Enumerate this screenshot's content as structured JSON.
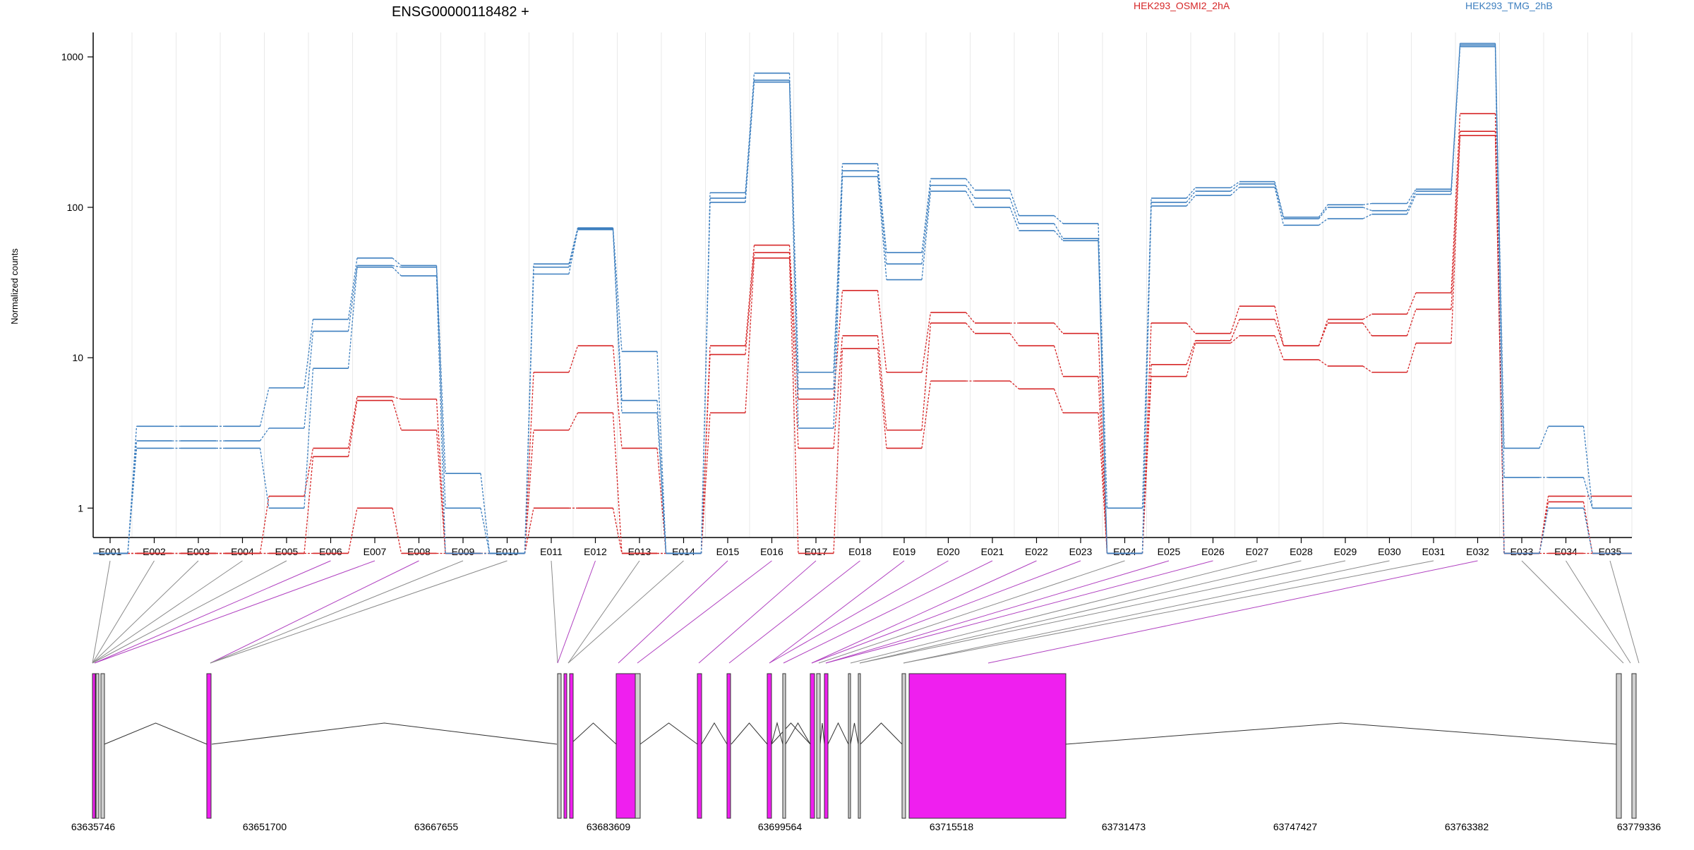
{
  "chart_data": {
    "type": "line",
    "title": "ENSG00000118482 +",
    "ylabel": "Normalized counts",
    "y_scale": "log",
    "y_ticks": [
      1,
      10,
      100,
      1000
    ],
    "y_tick_labels": [
      "1",
      "10",
      "100",
      "1000"
    ],
    "grid": true,
    "legend_placement": "top-right",
    "categories": [
      "E001",
      "E002",
      "E003",
      "E004",
      "E005",
      "E006",
      "E007",
      "E008",
      "E009",
      "E010",
      "E011",
      "E012",
      "E013",
      "E014",
      "E015",
      "E016",
      "E017",
      "E018",
      "E019",
      "E020",
      "E021",
      "E022",
      "E023",
      "E024",
      "E025",
      "E026",
      "E027",
      "E028",
      "E029",
      "E030",
      "E031",
      "E032",
      "E033",
      "E034",
      "E035"
    ],
    "series": [
      {
        "group": "HEK293_OSMI2_2hA",
        "color": "#d62728",
        "values": [
          0.5,
          0.5,
          0.5,
          0.5,
          1.2,
          2.5,
          5.5,
          5.3,
          0.5,
          0.5,
          8,
          12,
          2.5,
          0.5,
          12,
          56,
          5.3,
          28,
          8,
          20,
          17,
          17,
          14.5,
          0.5,
          17,
          14.5,
          22,
          12,
          18,
          19.5,
          27,
          420,
          0.5,
          1.2,
          1.2
        ]
      },
      {
        "group": "HEK293_OSMI2_2hA",
        "color": "#d62728",
        "values": [
          0.5,
          0.5,
          0.5,
          0.5,
          0.5,
          2.2,
          5.2,
          3.3,
          0.5,
          0.5,
          3.3,
          4.3,
          0.5,
          0.5,
          10.5,
          50,
          2.5,
          14,
          3.3,
          17,
          14.5,
          12,
          7.5,
          0.5,
          9,
          13,
          18,
          12,
          17,
          14,
          21,
          320,
          0.5,
          1.1,
          0.5
        ]
      },
      {
        "group": "HEK293_OSMI2_2hA",
        "color": "#d62728",
        "values": [
          0.5,
          0.5,
          0.5,
          0.5,
          0.5,
          0.5,
          1.0,
          0.5,
          0.5,
          0.5,
          1.0,
          1.0,
          0.5,
          0.5,
          4.3,
          46,
          0.5,
          11.5,
          2.5,
          7,
          7,
          6.2,
          4.3,
          0.5,
          7.5,
          12.5,
          14,
          9.7,
          8.8,
          8,
          12.5,
          300,
          0.5,
          0.5,
          0.5
        ]
      },
      {
        "group": "HEK293_TMG_2hB",
        "color": "#3d7fbf",
        "values": [
          0.5,
          3.5,
          3.5,
          3.5,
          6.3,
          18,
          46,
          41,
          1.7,
          0.5,
          42,
          73,
          11,
          0.5,
          125,
          780,
          8,
          195,
          50,
          155,
          130,
          88,
          78,
          1.0,
          115,
          135,
          148,
          86,
          104,
          106,
          132,
          1230,
          2.5,
          3.5,
          1.0
        ]
      },
      {
        "group": "HEK293_TMG_2hB",
        "color": "#3d7fbf",
        "values": [
          0.5,
          2.8,
          2.8,
          2.8,
          3.4,
          15,
          41,
          40,
          1.0,
          0.5,
          40,
          72,
          5.2,
          0.5,
          115,
          700,
          6.2,
          175,
          42,
          140,
          115,
          78,
          62,
          0.5,
          108,
          128,
          143,
          84,
          100,
          95,
          128,
          1200,
          1.6,
          1.6,
          1.0
        ]
      },
      {
        "group": "HEK293_TMG_2hB",
        "color": "#3d7fbf",
        "values": [
          0.5,
          2.5,
          2.5,
          2.5,
          1.0,
          8.5,
          40,
          35,
          0.5,
          0.5,
          36,
          71,
          4.3,
          0.5,
          108,
          680,
          3.4,
          160,
          33,
          128,
          100,
          70,
          60,
          0.5,
          102,
          120,
          136,
          76,
          84,
          90,
          122,
          1170,
          0.5,
          1.0,
          0.5
        ]
      }
    ],
    "x_axis_labels": [
      "63635746",
      "63651700",
      "63667655",
      "63683609",
      "63699564",
      "63715518",
      "63731473",
      "63747427",
      "63763382",
      "63779336"
    ]
  },
  "legend": {
    "group_a": {
      "label": "HEK293_OSMI2_2hA",
      "color": "#d62728"
    },
    "group_b": {
      "label": "HEK293_TMG_2hB",
      "color": "#3d7fbf"
    }
  },
  "colors": {
    "exon_highlight": "#ef1fef",
    "exon_plain": "#d0d0d0",
    "connector_highlight": "#b040c0",
    "connector_plain": "#8a8a8a",
    "intron": "#333333"
  }
}
